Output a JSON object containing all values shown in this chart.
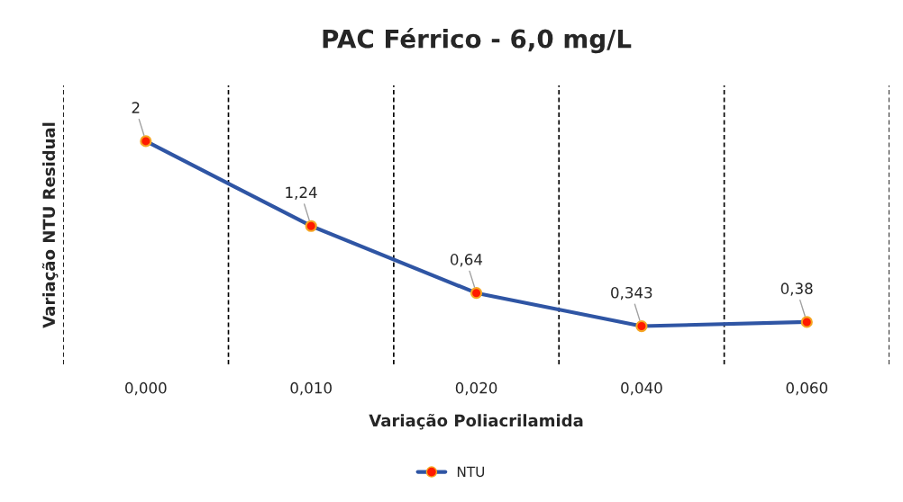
{
  "chart_data": {
    "type": "line",
    "title": "PAC Férrico - 6,0 mg/L",
    "xlabel": "Variação Poliacrilamida",
    "ylabel": "Variação NTU Residual",
    "categories": [
      "0,000",
      "0,010",
      "0,020",
      "0,040",
      "0,060"
    ],
    "series": [
      {
        "name": "NTU",
        "color": "#2f55a4",
        "values": [
          2,
          1.24,
          0.64,
          0.343,
          0.38
        ],
        "value_labels": [
          "2",
          "1,24",
          "0,64",
          "0,343",
          "0,38"
        ]
      }
    ],
    "ylim": [
      0,
      2.5
    ],
    "tick_labels": "x",
    "grid": "x",
    "legend": "bottom",
    "marker": "circle",
    "line_style": "solid"
  }
}
